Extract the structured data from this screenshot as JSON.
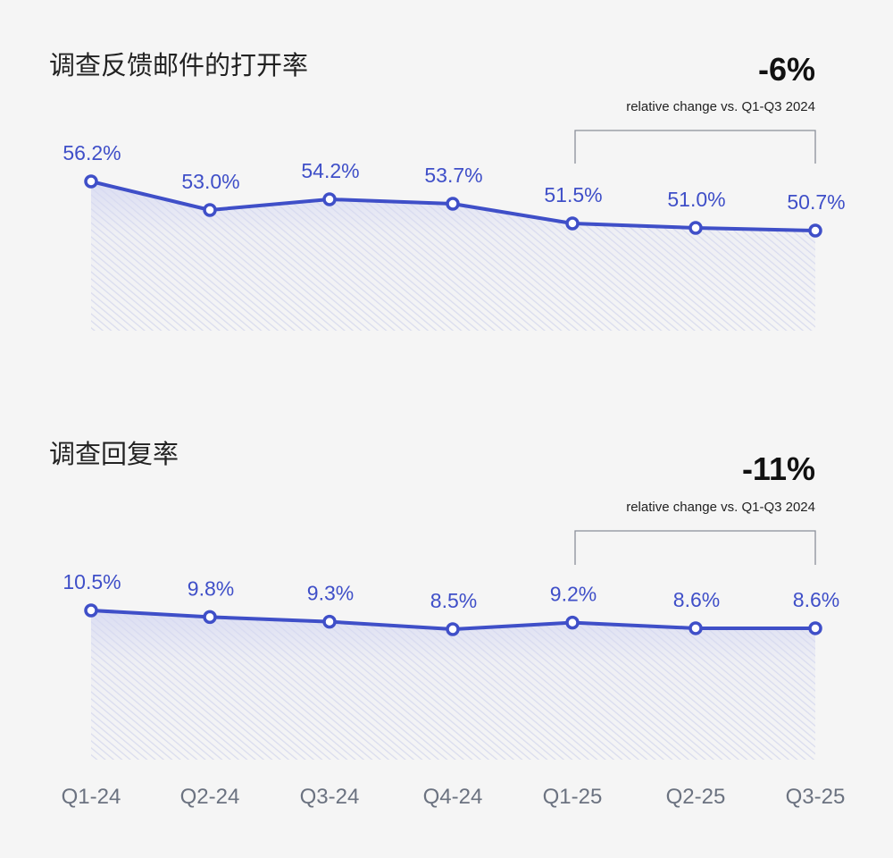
{
  "chart_data": [
    {
      "type": "line",
      "title": "调查反馈邮件的打开率",
      "categories": [
        "Q1-24",
        "Q2-24",
        "Q3-24",
        "Q4-24",
        "Q1-25",
        "Q2-25",
        "Q3-25"
      ],
      "values": [
        56.2,
        53.0,
        54.2,
        53.7,
        51.5,
        51.0,
        50.7
      ],
      "data_labels": [
        "56.2%",
        "53.0%",
        "54.2%",
        "53.7%",
        "51.5%",
        "51.0%",
        "50.7%"
      ],
      "ylim": [
        39.5,
        56.2
      ],
      "annotation": {
        "value": "-6%",
        "text": "relative change vs. Q1-Q3 2024",
        "span": [
          "Q1-25",
          "Q3-25"
        ]
      },
      "grid": false
    },
    {
      "type": "line",
      "title": "调查回复率",
      "categories": [
        "Q1-24",
        "Q2-24",
        "Q3-24",
        "Q4-24",
        "Q1-25",
        "Q2-25",
        "Q3-25"
      ],
      "values": [
        10.5,
        9.8,
        9.3,
        8.5,
        9.2,
        8.6,
        8.6
      ],
      "data_labels": [
        "10.5%",
        "9.8%",
        "9.3%",
        "8.5%",
        "9.2%",
        "8.6%",
        "8.6%"
      ],
      "ylim": [
        -5.4,
        10.5
      ],
      "annotation": {
        "value": "-11%",
        "text": "relative change vs. Q1-Q3 2024",
        "span": [
          "Q1-25",
          "Q3-25"
        ]
      },
      "grid": false
    }
  ],
  "colors": {
    "line": "#3f4fc8",
    "fill": "#d9dcf2",
    "bracket": "#8a8f99",
    "tick": "#6b7280"
  }
}
